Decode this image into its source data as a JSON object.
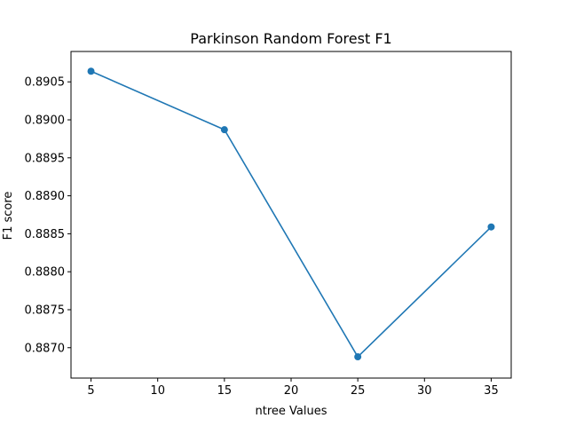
{
  "chart_data": {
    "type": "line",
    "title": "Parkinson Random Forest F1",
    "xlabel": "ntree Values",
    "ylabel": "F1 score",
    "x": [
      5,
      15,
      25,
      35
    ],
    "series": [
      {
        "values": [
          0.89064,
          0.88987,
          0.88688,
          0.88859
        ],
        "color": "#1f77b4"
      }
    ],
    "xlim": [
      3.5,
      36.5
    ],
    "ylim": [
      0.8866,
      0.8909
    ],
    "xticks": [
      5,
      10,
      15,
      20,
      25,
      30,
      35
    ],
    "xtick_labels": [
      "5",
      "10",
      "15",
      "20",
      "25",
      "30",
      "35"
    ],
    "yticks": [
      0.887,
      0.8875,
      0.888,
      0.8885,
      0.889,
      0.8895,
      0.89,
      0.8905
    ],
    "ytick_labels": [
      "0.8870",
      "0.8875",
      "0.8880",
      "0.8885",
      "0.8890",
      "0.8895",
      "0.8900",
      "0.8905"
    ],
    "grid": false,
    "markers": "circle"
  }
}
